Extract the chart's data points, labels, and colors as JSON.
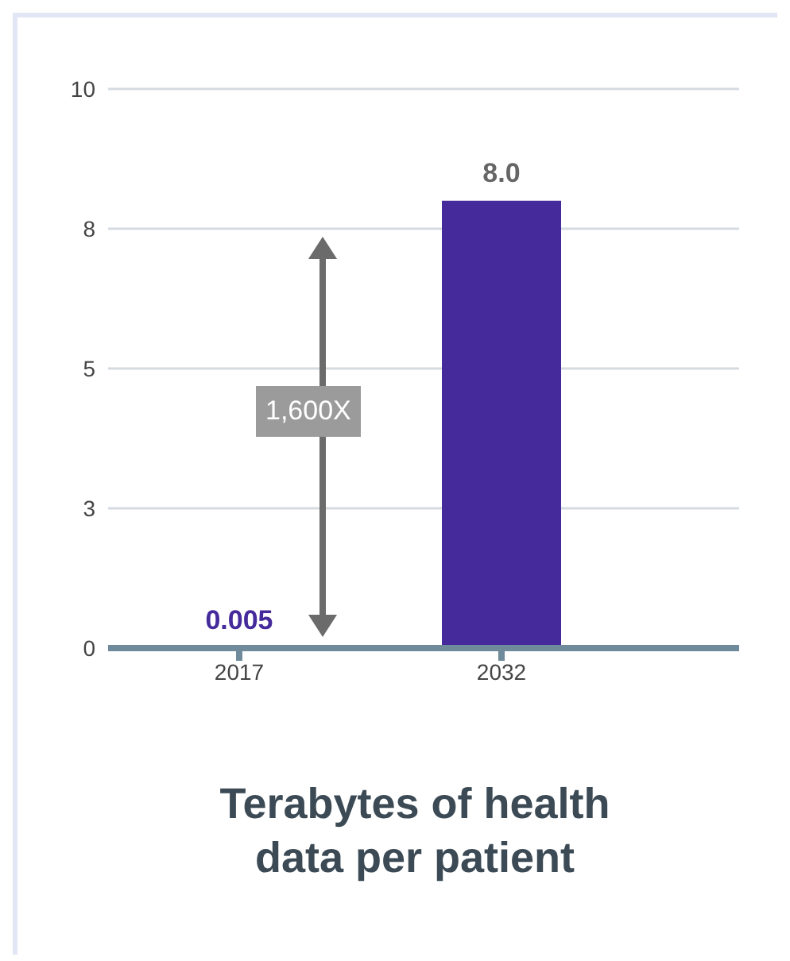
{
  "chart_data": {
    "type": "bar",
    "title": "Terabytes of health data per patient",
    "categories": [
      "2017",
      "2032"
    ],
    "values": [
      0.005,
      8.0
    ],
    "color": "#452a9b",
    "ylim": [
      0,
      10
    ],
    "yticks": [
      0,
      {
        "value": 2.5,
        "label": "3"
      },
      5,
      {
        "value": 7.5,
        "label": "8"
      },
      10
    ],
    "grid": "y",
    "data_labels": true,
    "value_labels": [
      "0.005",
      "8.0"
    ],
    "annotations": [
      "1,600X"
    ]
  }
}
